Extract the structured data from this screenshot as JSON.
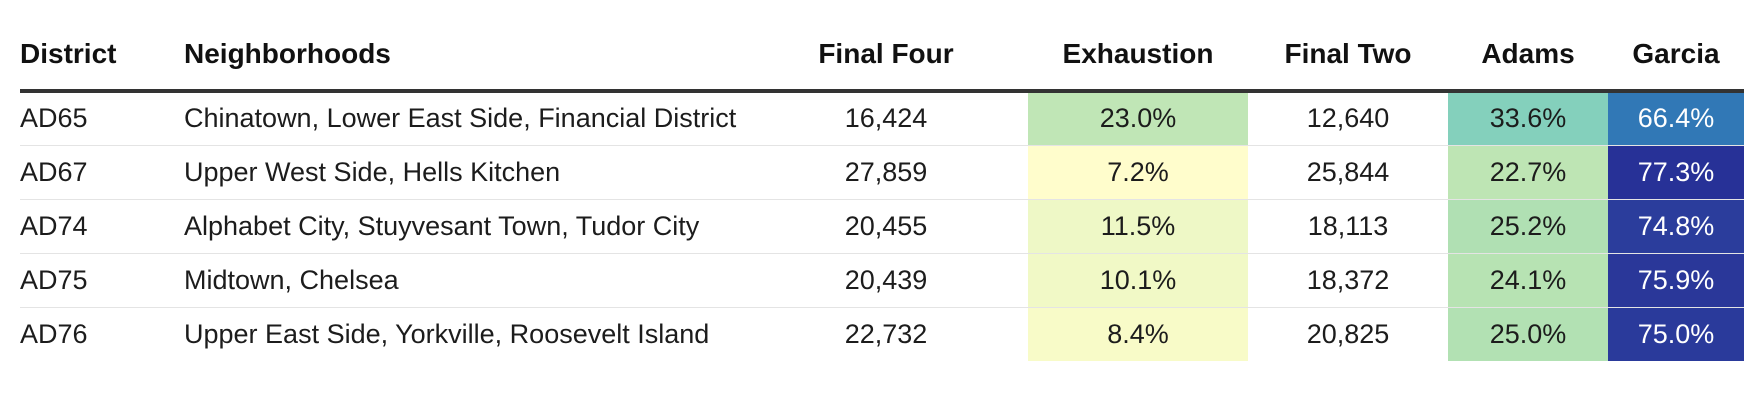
{
  "chart_data": {
    "type": "table",
    "columns": [
      "District",
      "Neighborhoods",
      "Final Four",
      "Exhaustion",
      "Final Two",
      "Adams",
      "Garcia"
    ],
    "rows": [
      {
        "district": "AD65",
        "neighborhoods": "Chinatown, Lower East Side, Financial District",
        "final_four": "16,424",
        "exhaustion": "23.0%",
        "final_two": "12,640",
        "adams": "33.6%",
        "garcia": "66.4%"
      },
      {
        "district": "AD67",
        "neighborhoods": "Upper West Side, Hells Kitchen",
        "final_four": "27,859",
        "exhaustion": "7.2%",
        "final_two": "25,844",
        "adams": "22.7%",
        "garcia": "77.3%"
      },
      {
        "district": "AD74",
        "neighborhoods": "Alphabet City, Stuyvesant Town, Tudor City",
        "final_four": "20,455",
        "exhaustion": "11.5%",
        "final_two": "18,113",
        "adams": "25.2%",
        "garcia": "74.8%"
      },
      {
        "district": "AD75",
        "neighborhoods": "Midtown, Chelsea",
        "final_four": "20,439",
        "exhaustion": "10.1%",
        "final_two": "18,372",
        "adams": "24.1%",
        "garcia": "75.9%"
      },
      {
        "district": "AD76",
        "neighborhoods": "Upper East Side, Yorkville, Roosevelt Island",
        "final_four": "22,732",
        "exhaustion": "8.4%",
        "final_two": "20,825",
        "adams": "25.0%",
        "garcia": "75.0%"
      }
    ],
    "cell_colors": {
      "exhaustion": [
        "#c0e6b6",
        "#fffdcc",
        "#eef8c6",
        "#f1f9c6",
        "#f8fbc8"
      ],
      "adams": [
        "#84d0bc",
        "#bee5b4",
        "#b0e0b3",
        "#b7e3b3",
        "#b2e1b3"
      ],
      "garcia": [
        "#3178b6",
        "#273197",
        "#2b3d9c",
        "#2a3799",
        "#2a3a9b"
      ]
    }
  }
}
